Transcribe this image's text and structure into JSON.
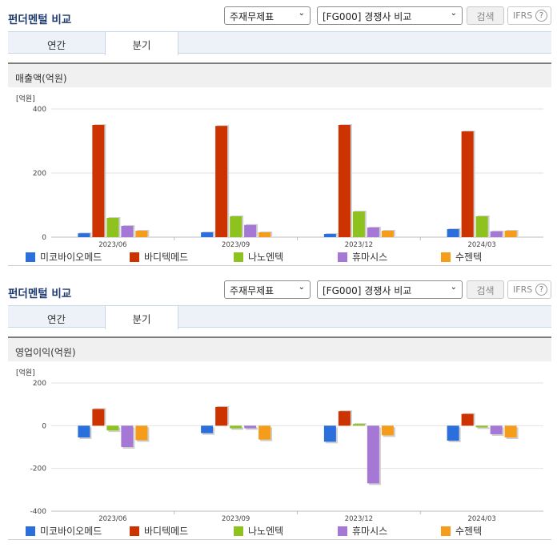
{
  "panels": [
    {
      "title": "펀더멘털 비교",
      "select1": "주재무제표",
      "select2": "[FG000] 경쟁사 비교",
      "search_label": "검색",
      "ifrs_label": "IFRS",
      "help_icon": "?",
      "tabs": [
        "연간",
        "분기"
      ],
      "active_tab": 1,
      "chart_title": "매출액(억원)",
      "unit": "[억원]"
    },
    {
      "title": "펀더멘털 비교",
      "select1": "주재무제표",
      "select2": "[FG000] 경쟁사 비교",
      "search_label": "검색",
      "ifrs_label": "IFRS",
      "help_icon": "?",
      "tabs": [
        "연간",
        "분기"
      ],
      "active_tab": 1,
      "chart_title": "영업이익(억원)",
      "unit": "[억원]"
    }
  ],
  "colors": [
    "#2a6fdb",
    "#cc3300",
    "#8dc21f",
    "#a678d6",
    "#f59c1a"
  ],
  "chart_data": [
    {
      "type": "bar",
      "title": "매출액(억원)",
      "ylabel": "[억원]",
      "categories": [
        "2023/06",
        "2023/09",
        "2023/12",
        "2024/03"
      ],
      "ylim": [
        0,
        400
      ],
      "yticks": [
        0,
        200,
        400
      ],
      "series": [
        {
          "name": "미코바이오메드",
          "values": [
            12,
            15,
            10,
            25
          ]
        },
        {
          "name": "바디텍메드",
          "values": [
            350,
            347,
            350,
            330
          ]
        },
        {
          "name": "나노엔텍",
          "values": [
            60,
            65,
            80,
            65
          ]
        },
        {
          "name": "휴마시스",
          "values": [
            35,
            38,
            30,
            18
          ]
        },
        {
          "name": "수젠텍",
          "values": [
            20,
            15,
            20,
            20
          ]
        }
      ]
    },
    {
      "type": "bar",
      "title": "영업이익(억원)",
      "ylabel": "[억원]",
      "categories": [
        "2023/06",
        "2023/09",
        "2023/12",
        "2024/03"
      ],
      "ylim": [
        -400,
        200
      ],
      "yticks": [
        -400,
        -200,
        0,
        200
      ],
      "series": [
        {
          "name": "미코바이오메드",
          "values": [
            -55,
            -35,
            -75,
            -70
          ]
        },
        {
          "name": "바디텍메드",
          "values": [
            78,
            88,
            68,
            55
          ]
        },
        {
          "name": "나노엔텍",
          "values": [
            -22,
            -12,
            8,
            -8
          ]
        },
        {
          "name": "휴마시스",
          "values": [
            -100,
            -12,
            -270,
            -40
          ]
        },
        {
          "name": "수젠텍",
          "values": [
            -68,
            -65,
            -45,
            -55
          ]
        }
      ]
    }
  ]
}
